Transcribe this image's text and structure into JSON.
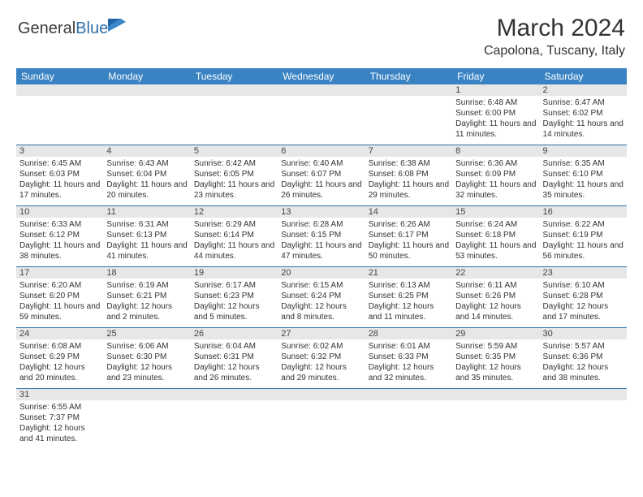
{
  "brand": {
    "part1": "General",
    "part2": "Blue"
  },
  "title": "March 2024",
  "location": "Capolona, Tuscany, Italy",
  "colors": {
    "header_bg": "#3a83c3",
    "header_fg": "#ffffff",
    "num_bg": "#e7e7e7",
    "divider": "#2f6fa8",
    "text": "#333333",
    "logo_gray": "#3a3a3a",
    "logo_blue": "#2f6fa8"
  },
  "day_names": [
    "Sunday",
    "Monday",
    "Tuesday",
    "Wednesday",
    "Thursday",
    "Friday",
    "Saturday"
  ],
  "weeks": [
    {
      "nums": [
        "",
        "",
        "",
        "",
        "",
        "1",
        "2"
      ],
      "cells": [
        {
          "sunrise": "",
          "sunset": "",
          "daylight": ""
        },
        {
          "sunrise": "",
          "sunset": "",
          "daylight": ""
        },
        {
          "sunrise": "",
          "sunset": "",
          "daylight": ""
        },
        {
          "sunrise": "",
          "sunset": "",
          "daylight": ""
        },
        {
          "sunrise": "",
          "sunset": "",
          "daylight": ""
        },
        {
          "sunrise": "Sunrise: 6:48 AM",
          "sunset": "Sunset: 6:00 PM",
          "daylight": "Daylight: 11 hours and 11 minutes."
        },
        {
          "sunrise": "Sunrise: 6:47 AM",
          "sunset": "Sunset: 6:02 PM",
          "daylight": "Daylight: 11 hours and 14 minutes."
        }
      ]
    },
    {
      "nums": [
        "3",
        "4",
        "5",
        "6",
        "7",
        "8",
        "9"
      ],
      "cells": [
        {
          "sunrise": "Sunrise: 6:45 AM",
          "sunset": "Sunset: 6:03 PM",
          "daylight": "Daylight: 11 hours and 17 minutes."
        },
        {
          "sunrise": "Sunrise: 6:43 AM",
          "sunset": "Sunset: 6:04 PM",
          "daylight": "Daylight: 11 hours and 20 minutes."
        },
        {
          "sunrise": "Sunrise: 6:42 AM",
          "sunset": "Sunset: 6:05 PM",
          "daylight": "Daylight: 11 hours and 23 minutes."
        },
        {
          "sunrise": "Sunrise: 6:40 AM",
          "sunset": "Sunset: 6:07 PM",
          "daylight": "Daylight: 11 hours and 26 minutes."
        },
        {
          "sunrise": "Sunrise: 6:38 AM",
          "sunset": "Sunset: 6:08 PM",
          "daylight": "Daylight: 11 hours and 29 minutes."
        },
        {
          "sunrise": "Sunrise: 6:36 AM",
          "sunset": "Sunset: 6:09 PM",
          "daylight": "Daylight: 11 hours and 32 minutes."
        },
        {
          "sunrise": "Sunrise: 6:35 AM",
          "sunset": "Sunset: 6:10 PM",
          "daylight": "Daylight: 11 hours and 35 minutes."
        }
      ]
    },
    {
      "nums": [
        "10",
        "11",
        "12",
        "13",
        "14",
        "15",
        "16"
      ],
      "cells": [
        {
          "sunrise": "Sunrise: 6:33 AM",
          "sunset": "Sunset: 6:12 PM",
          "daylight": "Daylight: 11 hours and 38 minutes."
        },
        {
          "sunrise": "Sunrise: 6:31 AM",
          "sunset": "Sunset: 6:13 PM",
          "daylight": "Daylight: 11 hours and 41 minutes."
        },
        {
          "sunrise": "Sunrise: 6:29 AM",
          "sunset": "Sunset: 6:14 PM",
          "daylight": "Daylight: 11 hours and 44 minutes."
        },
        {
          "sunrise": "Sunrise: 6:28 AM",
          "sunset": "Sunset: 6:15 PM",
          "daylight": "Daylight: 11 hours and 47 minutes."
        },
        {
          "sunrise": "Sunrise: 6:26 AM",
          "sunset": "Sunset: 6:17 PM",
          "daylight": "Daylight: 11 hours and 50 minutes."
        },
        {
          "sunrise": "Sunrise: 6:24 AM",
          "sunset": "Sunset: 6:18 PM",
          "daylight": "Daylight: 11 hours and 53 minutes."
        },
        {
          "sunrise": "Sunrise: 6:22 AM",
          "sunset": "Sunset: 6:19 PM",
          "daylight": "Daylight: 11 hours and 56 minutes."
        }
      ]
    },
    {
      "nums": [
        "17",
        "18",
        "19",
        "20",
        "21",
        "22",
        "23"
      ],
      "cells": [
        {
          "sunrise": "Sunrise: 6:20 AM",
          "sunset": "Sunset: 6:20 PM",
          "daylight": "Daylight: 11 hours and 59 minutes."
        },
        {
          "sunrise": "Sunrise: 6:19 AM",
          "sunset": "Sunset: 6:21 PM",
          "daylight": "Daylight: 12 hours and 2 minutes."
        },
        {
          "sunrise": "Sunrise: 6:17 AM",
          "sunset": "Sunset: 6:23 PM",
          "daylight": "Daylight: 12 hours and 5 minutes."
        },
        {
          "sunrise": "Sunrise: 6:15 AM",
          "sunset": "Sunset: 6:24 PM",
          "daylight": "Daylight: 12 hours and 8 minutes."
        },
        {
          "sunrise": "Sunrise: 6:13 AM",
          "sunset": "Sunset: 6:25 PM",
          "daylight": "Daylight: 12 hours and 11 minutes."
        },
        {
          "sunrise": "Sunrise: 6:11 AM",
          "sunset": "Sunset: 6:26 PM",
          "daylight": "Daylight: 12 hours and 14 minutes."
        },
        {
          "sunrise": "Sunrise: 6:10 AM",
          "sunset": "Sunset: 6:28 PM",
          "daylight": "Daylight: 12 hours and 17 minutes."
        }
      ]
    },
    {
      "nums": [
        "24",
        "25",
        "26",
        "27",
        "28",
        "29",
        "30"
      ],
      "cells": [
        {
          "sunrise": "Sunrise: 6:08 AM",
          "sunset": "Sunset: 6:29 PM",
          "daylight": "Daylight: 12 hours and 20 minutes."
        },
        {
          "sunrise": "Sunrise: 6:06 AM",
          "sunset": "Sunset: 6:30 PM",
          "daylight": "Daylight: 12 hours and 23 minutes."
        },
        {
          "sunrise": "Sunrise: 6:04 AM",
          "sunset": "Sunset: 6:31 PM",
          "daylight": "Daylight: 12 hours and 26 minutes."
        },
        {
          "sunrise": "Sunrise: 6:02 AM",
          "sunset": "Sunset: 6:32 PM",
          "daylight": "Daylight: 12 hours and 29 minutes."
        },
        {
          "sunrise": "Sunrise: 6:01 AM",
          "sunset": "Sunset: 6:33 PM",
          "daylight": "Daylight: 12 hours and 32 minutes."
        },
        {
          "sunrise": "Sunrise: 5:59 AM",
          "sunset": "Sunset: 6:35 PM",
          "daylight": "Daylight: 12 hours and 35 minutes."
        },
        {
          "sunrise": "Sunrise: 5:57 AM",
          "sunset": "Sunset: 6:36 PM",
          "daylight": "Daylight: 12 hours and 38 minutes."
        }
      ]
    },
    {
      "nums": [
        "31",
        "",
        "",
        "",
        "",
        "",
        ""
      ],
      "cells": [
        {
          "sunrise": "Sunrise: 6:55 AM",
          "sunset": "Sunset: 7:37 PM",
          "daylight": "Daylight: 12 hours and 41 minutes."
        },
        {
          "sunrise": "",
          "sunset": "",
          "daylight": ""
        },
        {
          "sunrise": "",
          "sunset": "",
          "daylight": ""
        },
        {
          "sunrise": "",
          "sunset": "",
          "daylight": ""
        },
        {
          "sunrise": "",
          "sunset": "",
          "daylight": ""
        },
        {
          "sunrise": "",
          "sunset": "",
          "daylight": ""
        },
        {
          "sunrise": "",
          "sunset": "",
          "daylight": ""
        }
      ]
    }
  ]
}
